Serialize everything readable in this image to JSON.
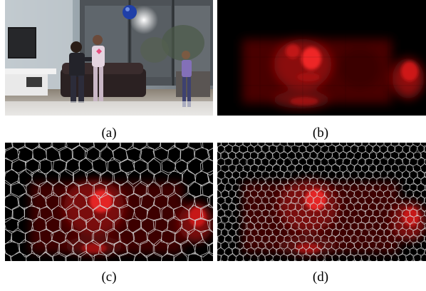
{
  "figure": {
    "panels": [
      {
        "id": "a",
        "caption": "(a)",
        "content": "photo"
      },
      {
        "id": "b",
        "caption": "(b)",
        "content": "saliency-map"
      },
      {
        "id": "c",
        "caption": "(c)",
        "content": "coarse-superpixel-saliency"
      },
      {
        "id": "d",
        "caption": "(d)",
        "content": "fine-superpixel-saliency"
      }
    ],
    "colors": {
      "saliency": "#ff2020",
      "background": "#000000",
      "grid": "#d8d8d8"
    }
  }
}
